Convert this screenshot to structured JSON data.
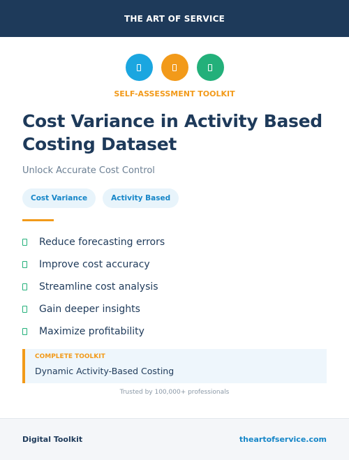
{
  "header": {
    "brand": "THE ART OF SERVICE"
  },
  "icons": [
    {
      "name": "document-icon",
      "color": "#1ba6e0"
    },
    {
      "name": "chart-icon",
      "color": "#f29a1a"
    },
    {
      "name": "checklist-icon",
      "color": "#23b07a"
    }
  ],
  "kicker": "SELF-ASSESSMENT TOOLKIT",
  "title": "Cost Variance in Activity Based Costing Dataset",
  "subtitle": "Unlock Accurate Cost Control",
  "tags": [
    "Cost Variance",
    "Activity Based"
  ],
  "features": [
    "Reduce forecasting errors",
    "Improve cost accuracy",
    "Streamline cost analysis",
    "Gain deeper insights",
    "Maximize profitability"
  ],
  "callout": {
    "label": "COMPLETE TOOLKIT",
    "text": "Dynamic Activity-Based Costing"
  },
  "trusted": "Trusted by 100,000+ professionals",
  "footer": {
    "left": "Digital Toolkit",
    "right": "theartofservice.com"
  },
  "colors": {
    "navy": "#1e3a5a",
    "orange": "#f29a1a",
    "blue": "#1ba6e0",
    "green": "#23b07a"
  }
}
